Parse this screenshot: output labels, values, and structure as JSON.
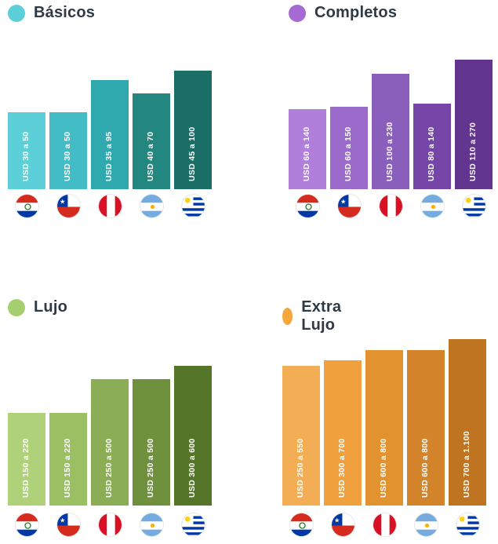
{
  "chart_data": [
    {
      "type": "bar",
      "title": "Básicos",
      "accent": "#5ccfd8",
      "categories": [
        "paraguay",
        "chile",
        "peru",
        "argentina",
        "uruguay"
      ],
      "labels": [
        "USD 30 a 50",
        "USD 30 a 50",
        "USD 35 a 95",
        "USD 40 a 70",
        "USD 45 a 100"
      ],
      "values": [
        40,
        40,
        65,
        55,
        72.5
      ],
      "colors": [
        "#5ccfd8",
        "#43bcc6",
        "#2fa9ad",
        "#23877f",
        "#1a6e66"
      ]
    },
    {
      "type": "bar",
      "title": "Completos",
      "accent": "#a66bd2",
      "categories": [
        "paraguay",
        "chile",
        "peru",
        "argentina",
        "uruguay"
      ],
      "labels": [
        "USD 60 a 140",
        "USD 60 a 150",
        "USD 100 a 230",
        "USD 80 a 140",
        "USD 110 a 270"
      ],
      "values": [
        100,
        105,
        165,
        110,
        190
      ],
      "colors": [
        "#b07fd9",
        "#9b6bcc",
        "#8a5fbc",
        "#7546a8",
        "#62368f"
      ]
    },
    {
      "type": "bar",
      "title": "Lujo",
      "accent": "#a5cf6e",
      "categories": [
        "paraguay",
        "chile",
        "peru",
        "argentina",
        "uruguay"
      ],
      "labels": [
        "USD 150 a 220",
        "USD 150 a 220",
        "USD 250 a 500",
        "USD 250 a 500",
        "USD 300 a 600"
      ],
      "values": [
        185,
        185,
        375,
        375,
        450
      ],
      "colors": [
        "#afd17a",
        "#9ac063",
        "#8aad56",
        "#6f913e",
        "#557529"
      ]
    },
    {
      "type": "bar",
      "title": "Extra Lujo",
      "accent": "#f6a73c",
      "categories": [
        "paraguay",
        "chile",
        "peru",
        "argentina",
        "uruguay"
      ],
      "labels": [
        "USD 250 a 550",
        "USD 300 a 700",
        "USD 600 a 800",
        "USD 600 a 800",
        "USD 700 a 1.100"
      ],
      "values": [
        400,
        500,
        700,
        700,
        900
      ],
      "colors": [
        "#f3ad54",
        "#f0a13d",
        "#e39230",
        "#d3842a",
        "#bf7421"
      ]
    }
  ]
}
